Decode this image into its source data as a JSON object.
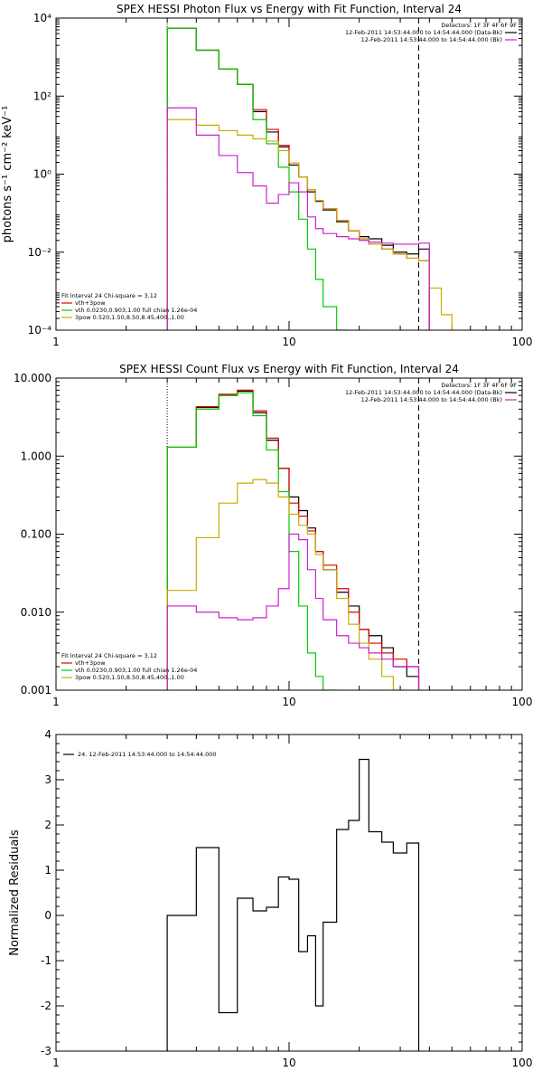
{
  "chart_data": [
    {
      "type": "line",
      "title": "SPEX HESSI Photon Flux vs Energy with Fit Function, Interval 24",
      "xlabel": "",
      "ylabel": "photons s⁻¹ cm⁻² keV⁻¹",
      "x_scale": "log",
      "y_scale": "log",
      "xlim": [
        1,
        100
      ],
      "ylim": [
        0.0001,
        10000
      ],
      "x_ticks": [
        {
          "value": 1,
          "label": "1"
        },
        {
          "value": 10,
          "label": "10"
        },
        {
          "value": 100,
          "label": "100"
        }
      ],
      "y_ticks": [
        {
          "value": 0.0001,
          "label": "10⁻⁴"
        },
        {
          "value": 0.01,
          "label": "10⁻²"
        },
        {
          "value": 1,
          "label": "10⁰"
        },
        {
          "value": 100,
          "label": "10²"
        },
        {
          "value": 10000,
          "label": "10⁴"
        }
      ],
      "fit_range_lines": [
        {
          "x": 3,
          "style": "dotted"
        },
        {
          "x": 36,
          "style": "dashed"
        }
      ],
      "legend_top_right": {
        "title": "Detectors: 1F 3F 4F 6F 9F",
        "entries": [
          {
            "label": "12-Feb-2011 14:53:44.000 to 14:54:44.000 (Data-Bk)",
            "color": "#000000"
          },
          {
            "label": "12-Feb-2011 14:53:44.000 to 14:54:44.000 (Bk)",
            "color": "#cc22cc"
          }
        ]
      },
      "legend_bottom_left": {
        "title": "Fit Interval 24    Chi-square = 3.12",
        "entries": [
          {
            "label": "vth+3pow",
            "color": "#dd0000"
          },
          {
            "label": "vth 0.0230,0.903,1.00  full chian 1.26e-04",
            "color": "#00cc00"
          },
          {
            "label": "3pow 0.520,1.50,8.50,8.45,400.,1.00",
            "color": "#ccaa00"
          }
        ]
      },
      "bin_edges": [
        3,
        4,
        5,
        6,
        7,
        8,
        9,
        10,
        11,
        12,
        13,
        14,
        16,
        18,
        20,
        22,
        25,
        28,
        32,
        36,
        40,
        45,
        50
      ],
      "series": [
        {
          "name": "12-Feb-2011 14:53:44.000 to 14:54:44.000 (Data-Bk)",
          "color": "#000000",
          "values": [
            5500,
            1500,
            500,
            200,
            40,
            12,
            5,
            1.7,
            0.85,
            0.35,
            0.2,
            0.12,
            0.06,
            0.035,
            0.025,
            0.022,
            0.015,
            0.01,
            0.009,
            0.012
          ]
        },
        {
          "name": "vth+3pow",
          "color": "#dd0000",
          "values": [
            5500,
            1500,
            500,
            200,
            45,
            14,
            5.5,
            1.9,
            0.85,
            0.4,
            0.21,
            0.13,
            0.065,
            0.035,
            0.022,
            0.016,
            0.012,
            0.009,
            0.007,
            0.006
          ]
        },
        {
          "name": "vth",
          "color": "#00cc00",
          "values": [
            5500,
            1500,
            500,
            200,
            25,
            6,
            1.5,
            0.35,
            0.07,
            0.012,
            0.002,
            0.0004,
            0.0001
          ]
        },
        {
          "name": "3pow",
          "color": "#ccaa00",
          "values": [
            25,
            18,
            13,
            10,
            8,
            7,
            4,
            1.9,
            0.85,
            0.4,
            0.21,
            0.13,
            0.065,
            0.035,
            0.022,
            0.016,
            0.012,
            0.009,
            0.007,
            0.006,
            0.0012,
            0.00025,
            0.0001
          ]
        },
        {
          "name": "12-Feb-2011 14:53:44.000 to 14:54:44.000 (Bk)",
          "color": "#cc22cc",
          "values": [
            50,
            10,
            3,
            1.1,
            0.5,
            0.18,
            0.3,
            0.6,
            0.35,
            0.08,
            0.04,
            0.03,
            0.025,
            0.022,
            0.02,
            0.018,
            0.017,
            0.016,
            0.016,
            0.017
          ]
        }
      ]
    },
    {
      "type": "line",
      "title": "SPEX HESSI Count Flux vs Energy with Fit Function, Interval 24",
      "xlabel": "",
      "ylabel": "",
      "x_scale": "log",
      "y_scale": "log",
      "xlim": [
        1,
        100
      ],
      "ylim": [
        0.001,
        10
      ],
      "x_ticks": [
        {
          "value": 1,
          "label": "1"
        },
        {
          "value": 10,
          "label": "10"
        },
        {
          "value": 100,
          "label": "100"
        }
      ],
      "y_ticks": [
        {
          "value": 0.001,
          "label": "0.001"
        },
        {
          "value": 0.01,
          "label": "0.010"
        },
        {
          "value": 0.1,
          "label": "0.100"
        },
        {
          "value": 1,
          "label": "1.000"
        },
        {
          "value": 10,
          "label": "10.000"
        }
      ],
      "fit_range_lines": [
        {
          "x": 3,
          "style": "dotted"
        },
        {
          "x": 36,
          "style": "dashed"
        }
      ],
      "legend_top_right": {
        "title": "Detectors: 1F 3F 4F 6F 9F",
        "entries": [
          {
            "label": "12-Feb-2011 14:53:44.000 to 14:54:44.000 (Data-Bk)",
            "color": "#000000"
          },
          {
            "label": "12-Feb-2011 14:53:44.000 to 14:54:44.000 (Bk)",
            "color": "#cc22cc"
          }
        ]
      },
      "legend_bottom_left": {
        "title": "Fit Interval 24    Chi-square = 3.12",
        "entries": [
          {
            "label": "vth+3pow",
            "color": "#dd0000"
          },
          {
            "label": "vth 0.0230,0.903,1.00  full chian 1.26e-04",
            "color": "#00cc00"
          },
          {
            "label": "3pow 0.520,1.50,8.50,8.45,400.,1.00",
            "color": "#ccaa00"
          }
        ]
      },
      "bin_edges": [
        3,
        4,
        5,
        6,
        7,
        8,
        9,
        10,
        11,
        12,
        13,
        14,
        16,
        18,
        20,
        22,
        25,
        28,
        32,
        36
      ],
      "series": [
        {
          "name": "12-Feb-2011 14:53:44.000 to 14:54:44.000 (Data-Bk)",
          "color": "#000000",
          "values": [
            1.3,
            4.2,
            6,
            6.8,
            3.6,
            1.6,
            0.7,
            0.3,
            0.2,
            0.12,
            0.06,
            0.035,
            0.018,
            0.012,
            0.006,
            0.005,
            0.0035,
            0.002,
            0.0015
          ]
        },
        {
          "name": "vth+3pow",
          "color": "#dd0000",
          "values": [
            1.3,
            4.3,
            6.2,
            7,
            3.8,
            1.7,
            0.7,
            0.25,
            0.17,
            0.11,
            0.06,
            0.04,
            0.02,
            0.01,
            0.006,
            0.004,
            0.003,
            0.0025,
            0.002
          ]
        },
        {
          "name": "vth",
          "color": "#00cc00",
          "values": [
            1.3,
            4,
            6,
            6.5,
            3.3,
            1.2,
            0.35,
            0.06,
            0.012,
            0.003,
            0.0015,
            0.001
          ]
        },
        {
          "name": "3pow",
          "color": "#ccaa00",
          "values": [
            0.019,
            0.09,
            0.25,
            0.45,
            0.5,
            0.45,
            0.3,
            0.18,
            0.13,
            0.1,
            0.055,
            0.035,
            0.015,
            0.007,
            0.004,
            0.0025,
            0.0015,
            0.001
          ]
        },
        {
          "name": "12-Feb-2011 14:53:44.000 to 14:54:44.000 (Bk)",
          "color": "#cc22cc",
          "values": [
            0.012,
            0.01,
            0.0085,
            0.008,
            0.0085,
            0.012,
            0.02,
            0.1,
            0.085,
            0.035,
            0.015,
            0.008,
            0.005,
            0.004,
            0.0035,
            0.003,
            0.0025,
            0.002,
            0.002
          ]
        }
      ]
    },
    {
      "type": "line",
      "title": "",
      "xlabel": "",
      "ylabel": "Normalized Residuals",
      "x_scale": "log",
      "y_scale": "linear",
      "xlim": [
        1,
        100
      ],
      "ylim": [
        -3,
        4
      ],
      "x_ticks": [
        {
          "value": 1,
          "label": "1"
        },
        {
          "value": 10,
          "label": "10"
        },
        {
          "value": 100,
          "label": "100"
        }
      ],
      "y_ticks": [
        {
          "value": -3,
          "label": "-3"
        },
        {
          "value": -2,
          "label": "-2"
        },
        {
          "value": -1,
          "label": "-1"
        },
        {
          "value": 0,
          "label": "0"
        },
        {
          "value": 1,
          "label": "1"
        },
        {
          "value": 2,
          "label": "2"
        },
        {
          "value": 3,
          "label": "3"
        },
        {
          "value": 4,
          "label": "4"
        }
      ],
      "legend_top_left": {
        "entries": [
          {
            "label": "24. 12-Feb-2011 14:53:44.000 to 14:54:44.000",
            "color": "#000000"
          }
        ]
      },
      "bin_edges": [
        3,
        4,
        5,
        6,
        7,
        8,
        9,
        10,
        11,
        12,
        13,
        14,
        16,
        18,
        20,
        22,
        25,
        28,
        32,
        36
      ],
      "series": [
        {
          "name": "24. 12-Feb-2011 14:53:44.000 to 14:54:44.000",
          "color": "#000000",
          "values": [
            0,
            1.5,
            -2.15,
            0.38,
            0.1,
            0.18,
            0.85,
            0.8,
            -0.8,
            -0.45,
            -2,
            -0.15,
            1.9,
            2.1,
            3.45,
            1.85,
            1.62,
            1.38,
            1.6
          ]
        }
      ]
    }
  ]
}
